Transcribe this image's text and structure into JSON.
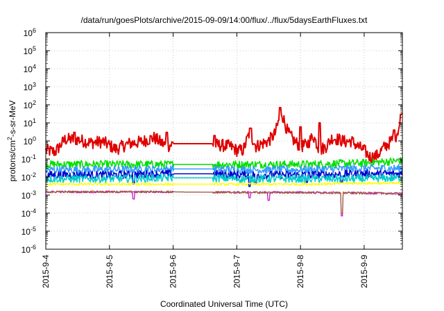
{
  "chart_data": {
    "type": "line",
    "title": "/data/run/goesPlots/archive/2015-09-09/14:00/flux/../flux/5daysEarthFluxes.txt",
    "xlabel": "Coordinated Universal Time (UTC)",
    "ylabel": {
      "prefix": "protons/cm",
      "sup": "2",
      "suffix": "-s-sr-MeV"
    },
    "yscale": "log",
    "ylim": [
      1e-06,
      1000000.0
    ],
    "y_ticks": [
      {
        "base": "10",
        "exp": "-6",
        "value": 1e-06
      },
      {
        "base": "10",
        "exp": "-5",
        "value": 1e-05
      },
      {
        "base": "10",
        "exp": "-4",
        "value": 0.0001
      },
      {
        "base": "10",
        "exp": "-3",
        "value": 0.001
      },
      {
        "base": "10",
        "exp": "-2",
        "value": 0.01
      },
      {
        "base": "10",
        "exp": "-1",
        "value": 0.1
      },
      {
        "base": "10",
        "exp": "0",
        "value": 1
      },
      {
        "base": "10",
        "exp": "1",
        "value": 10
      },
      {
        "base": "10",
        "exp": "2",
        "value": 100
      },
      {
        "base": "10",
        "exp": "3",
        "value": 1000
      },
      {
        "base": "10",
        "exp": "4",
        "value": 10000
      },
      {
        "base": "10",
        "exp": "5",
        "value": 100000
      },
      {
        "base": "10",
        "exp": "6",
        "value": 1000000
      }
    ],
    "x_ticks": [
      "2015-9-4",
      "2015-9-5",
      "2015-9-6",
      "2015-9-7",
      "2015-9-8",
      "2015-9-9"
    ],
    "xlim_days": [
      0,
      5.6
    ],
    "grid": true,
    "series": [
      {
        "color": "#e00000",
        "style": "noisy",
        "width": 2.0,
        "points": [
          [
            0,
            0.3
          ],
          [
            0.15,
            0.25
          ],
          [
            0.3,
            1.2
          ],
          [
            0.5,
            1.2
          ],
          [
            0.7,
            0.8
          ],
          [
            0.9,
            0.9
          ],
          [
            1.1,
            0.35
          ],
          [
            1.3,
            0.7
          ],
          [
            1.5,
            0.9
          ],
          [
            1.7,
            1.5
          ],
          [
            1.9,
            0.5
          ],
          [
            2.0,
            0.7
          ],
          [
            2.3,
            0.7
          ],
          [
            2.6,
            0.7
          ],
          [
            2.7,
            0.6
          ],
          [
            2.9,
            0.5
          ],
          [
            3.0,
            0.3
          ],
          [
            3.1,
            0.3
          ],
          [
            3.2,
            3.0
          ],
          [
            3.3,
            0.5
          ],
          [
            3.5,
            1.0
          ],
          [
            3.6,
            2.5
          ],
          [
            3.7,
            40
          ],
          [
            3.8,
            3.0
          ],
          [
            3.9,
            1.0
          ],
          [
            4.0,
            0.5
          ],
          [
            4.1,
            0.6
          ],
          [
            4.2,
            2.0
          ],
          [
            4.3,
            0.3
          ],
          [
            4.4,
            0.5
          ],
          [
            4.5,
            1.5
          ],
          [
            4.6,
            1.2
          ],
          [
            4.7,
            0.9
          ],
          [
            4.8,
            1.0
          ],
          [
            4.9,
            0.5
          ],
          [
            5.0,
            0.3
          ],
          [
            5.1,
            0.12
          ],
          [
            5.2,
            0.15
          ],
          [
            5.3,
            0.4
          ],
          [
            5.4,
            0.8
          ],
          [
            5.5,
            2.0
          ],
          [
            5.6,
            20
          ]
        ],
        "spikes": [
          [
            0.45,
            3.0
          ],
          [
            1.9,
            3.0
          ],
          [
            2.65,
            2.0
          ],
          [
            3.22,
            5.0
          ],
          [
            3.68,
            70
          ],
          [
            4.0,
            6.0
          ],
          [
            4.3,
            10.0
          ],
          [
            5.47,
            4.0
          ],
          [
            5.58,
            30
          ]
        ]
      },
      {
        "color": "#00e000",
        "style": "noisy",
        "width": 1.5,
        "points": [
          [
            0,
            0.05
          ],
          [
            1,
            0.05
          ],
          [
            2.0,
            0.05
          ],
          [
            2.6,
            0.05
          ],
          [
            3.0,
            0.05
          ],
          [
            4.0,
            0.05
          ],
          [
            5.0,
            0.06
          ],
          [
            5.6,
            0.08
          ]
        ],
        "spikes": []
      },
      {
        "color": "#3399ff",
        "style": "noisy",
        "width": 1.5,
        "points": [
          [
            0,
            0.025
          ],
          [
            1,
            0.025
          ],
          [
            2.0,
            0.028
          ],
          [
            2.6,
            0.028
          ],
          [
            3.0,
            0.025
          ],
          [
            4.0,
            0.025
          ],
          [
            5.0,
            0.03
          ],
          [
            5.6,
            0.03
          ]
        ],
        "spikes": []
      },
      {
        "color": "#0000cc",
        "style": "noisy",
        "width": 1.5,
        "points": [
          [
            0,
            0.013
          ],
          [
            1,
            0.013
          ],
          [
            2.0,
            0.015
          ],
          [
            2.6,
            0.015
          ],
          [
            3.0,
            0.013
          ],
          [
            4.0,
            0.013
          ],
          [
            5.0,
            0.015
          ],
          [
            5.6,
            0.015
          ]
        ],
        "spikes": [
          [
            1.38,
            0.004
          ],
          [
            3.2,
            0.003
          ],
          [
            3.3,
            0.004
          ],
          [
            4.1,
            0.005
          ],
          [
            4.65,
            0.005
          ]
        ]
      },
      {
        "color": "#00cccc",
        "style": "noisy",
        "width": 1.5,
        "points": [
          [
            0,
            0.008
          ],
          [
            1,
            0.008
          ],
          [
            2.0,
            0.009
          ],
          [
            2.6,
            0.009
          ],
          [
            3.0,
            0.008
          ],
          [
            4.0,
            0.008
          ],
          [
            5.0,
            0.008
          ],
          [
            5.6,
            0.009
          ]
        ],
        "spikes": []
      },
      {
        "color": "#ffff00",
        "style": "noisy",
        "width": 1.5,
        "points": [
          [
            0,
            0.004
          ],
          [
            1,
            0.004
          ],
          [
            2.0,
            0.004
          ],
          [
            3.0,
            0.004
          ],
          [
            4.0,
            0.004
          ],
          [
            5.0,
            0.0045
          ],
          [
            5.6,
            0.0045
          ]
        ],
        "spikes": []
      },
      {
        "color": "#cc00cc",
        "style": "noisy",
        "width": 1.2,
        "points": [
          [
            0,
            0.0015
          ],
          [
            2.0,
            0.0015
          ],
          [
            3.0,
            0.0014
          ],
          [
            4.0,
            0.0014
          ],
          [
            5.0,
            0.0013
          ],
          [
            5.6,
            0.0012
          ]
        ],
        "spikes": [
          [
            1.38,
            0.0006
          ],
          [
            3.2,
            0.0007
          ],
          [
            3.5,
            0.0005
          ],
          [
            4.65,
            7e-05
          ]
        ]
      },
      {
        "color": "#996633",
        "style": "noisy",
        "width": 1.2,
        "points": [
          [
            0,
            0.0015
          ],
          [
            2.0,
            0.0015
          ],
          [
            3.0,
            0.0014
          ],
          [
            4.0,
            0.0014
          ],
          [
            5.0,
            0.0013
          ],
          [
            5.6,
            0.0012
          ]
        ],
        "spikes": [
          [
            4.65,
            0.0001
          ]
        ]
      }
    ]
  }
}
